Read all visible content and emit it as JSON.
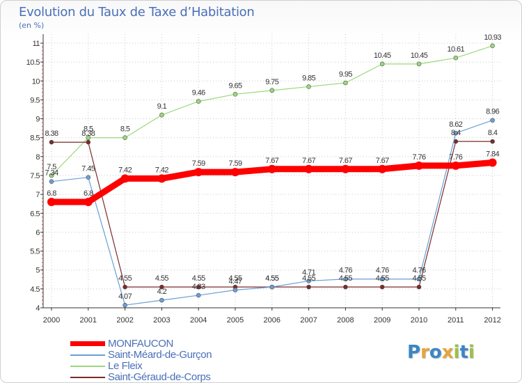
{
  "header": {
    "title": "Evolution du Taux de Taxe d’Habitation",
    "unit": "(en %)"
  },
  "chart_data": {
    "type": "line",
    "title": "Evolution du Taux de Taxe d’Habitation",
    "ylabel": "(en %)",
    "xlabel": "",
    "ylim": [
      4,
      11
    ],
    "yticks": [
      "4",
      "4.5",
      "5",
      "5.5",
      "6",
      "6.5",
      "7",
      "7.5",
      "8",
      "8.5",
      "9",
      "9.5",
      "10",
      "10.5",
      "11"
    ],
    "x": [
      "2000",
      "2001",
      "2002",
      "2003",
      "2004",
      "2005",
      "2006",
      "2007",
      "2008",
      "2009",
      "2010",
      "2011",
      "2012"
    ],
    "grid": true,
    "legend_position": "bottom-left",
    "series": [
      {
        "name": "MONFAUCON",
        "color": "#ff0000",
        "values": [
          6.8,
          6.8,
          7.42,
          7.42,
          7.59,
          7.59,
          7.67,
          7.67,
          7.67,
          7.67,
          7.76,
          7.76,
          7.84
        ],
        "labels": [
          "6.8",
          "6.8",
          "7.42",
          "7.42",
          "7.59",
          "7.59",
          "7.67",
          "7.67",
          "7.67",
          "7.67",
          "7.76",
          "7.76",
          "7.84"
        ]
      },
      {
        "name": "Saint-Méard-de-Gurçon",
        "color": "#6a9fd4",
        "values": [
          7.34,
          7.45,
          4.07,
          4.2,
          4.33,
          4.47,
          4.55,
          4.71,
          4.76,
          4.76,
          4.76,
          8.62,
          8.96
        ],
        "labels": [
          "7.34",
          "7.45",
          "4.07",
          "4.2",
          "4.33",
          "4.47",
          "4.55",
          "4.71",
          "4.76",
          "4.76",
          "4.76",
          "8.62",
          "8.96"
        ]
      },
      {
        "name": "Le Fleix",
        "color": "#9ad87a",
        "values": [
          7.5,
          8.5,
          8.5,
          9.1,
          9.46,
          9.65,
          9.75,
          9.85,
          9.95,
          10.45,
          10.45,
          10.61,
          10.93
        ],
        "labels": [
          "7.5",
          "8.5",
          "8.5",
          "9.1",
          "9.46",
          "9.65",
          "9.75",
          "9.85",
          "9.95",
          "10.45",
          "10.45",
          "10.61",
          "10.93"
        ]
      },
      {
        "name": "Saint-Géraud-de-Corps",
        "color": "#7a2a2a",
        "values": [
          8.38,
          8.38,
          4.55,
          4.55,
          4.55,
          4.55,
          4.55,
          4.55,
          4.55,
          4.55,
          4.55,
          8.4,
          8.4
        ],
        "labels": [
          "8.38",
          "8.38",
          "4.55",
          "4.55",
          "4.55",
          "4.55",
          "4.55",
          "4.55",
          "4.55",
          "4.55",
          "4.55",
          "8.4",
          "8.4"
        ]
      }
    ]
  },
  "legend": {
    "items": [
      {
        "label": "MONFAUCON",
        "color": "#ff0000"
      },
      {
        "label": "Saint-Méard-de-Gurçon",
        "color": "#6a9fd4"
      },
      {
        "label": "Le Fleix",
        "color": "#9ad87a"
      },
      {
        "label": "Saint-Géraud-de-Corps",
        "color": "#7a2a2a"
      }
    ]
  },
  "brand": {
    "logo_text": "Proxiti",
    "letters": [
      "P",
      "r",
      "o",
      "x",
      "i",
      "t",
      "i"
    ],
    "letter_colors": [
      "#3b86c6",
      "#e8a43a",
      "#3b86c6",
      "#e8a43a",
      "#9cc04a",
      "#3b86c6",
      "#9cc04a"
    ]
  }
}
